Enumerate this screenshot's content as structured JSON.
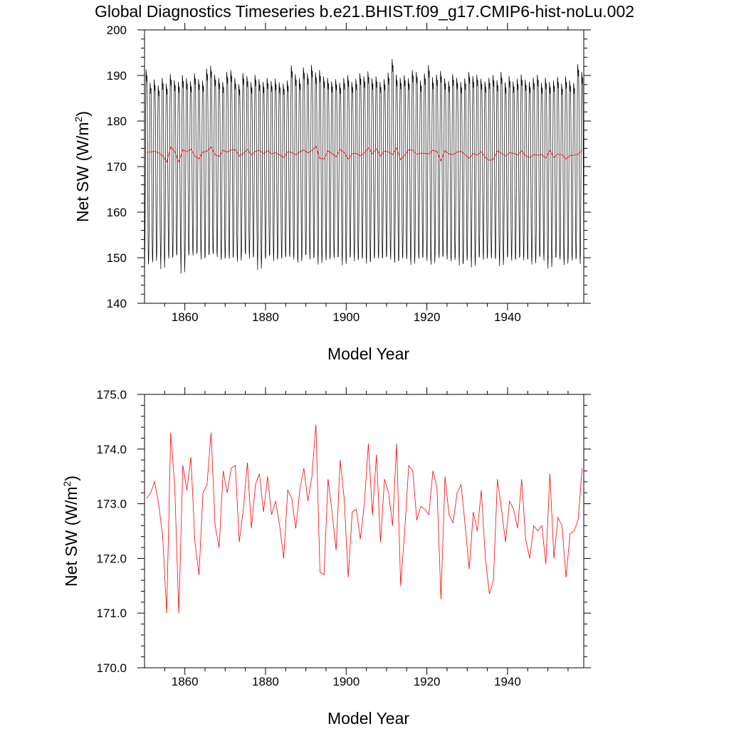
{
  "title": "Global Diagnostics Timeseries b.e21.BHIST.f09_g17.CMIP6-hist-noLu.002",
  "chart_data": [
    {
      "type": "line",
      "xlabel": "Model Year",
      "ylabel_main": "Net SW (W/m",
      "ylabel_sup": "2",
      "ylabel_close": ")",
      "xlim": [
        1850,
        1958.9
      ],
      "ylim": [
        140,
        200
      ],
      "xticks": [
        1860,
        1880,
        1900,
        1920,
        1940
      ],
      "xtick_labels": [
        "1860",
        "1880",
        "1900",
        "1920",
        "1940"
      ],
      "yticks": [
        140,
        150,
        160,
        170,
        180,
        190,
        200
      ],
      "ytick_labels": [
        "140",
        "150",
        "160",
        "170",
        "180",
        "190",
        "200"
      ],
      "series": [
        {
          "color": "#000000",
          "monthly_years": 109,
          "monthly_pattern": [
            149.5,
            156,
            168,
            181,
            189,
            188.2,
            186.5,
            187.8,
            181,
            167,
            155.5,
            149.8
          ],
          "annual_peaks": [
            191.3,
            188.4,
            189.1,
            187.8,
            189.5,
            188.2,
            190.3,
            189.0,
            188.6,
            190.1,
            189.4,
            188.7,
            190.5,
            189.2,
            188.9,
            191.5,
            192.1,
            190.2,
            189.5,
            188.6,
            190.8,
            191.2,
            189.4,
            188.1,
            190.5,
            189.9,
            188.5,
            190.2,
            189.2,
            188.6,
            189.5,
            188.8,
            189.3,
            188.5,
            188.2,
            188.9,
            192.2,
            190.3,
            189.4,
            191.8,
            190.5,
            192.3,
            190.7,
            191.2,
            189.8,
            189.5,
            188.7,
            189.2,
            188.4,
            189.5,
            190.1,
            188.6,
            189.3,
            190.5,
            189.8,
            190.9,
            189.4,
            189.8,
            188.6,
            189.2,
            190.6,
            193.6,
            190.2,
            189.5,
            190.1,
            189.4,
            191.2,
            190.8,
            188.9,
            190.5,
            192.3,
            189.6,
            190.2,
            191.0,
            189.4,
            188.8,
            190.3,
            189.5,
            188.6,
            189.4,
            190.8,
            189.9,
            190.2,
            189.3,
            188.7,
            189.5,
            190.1,
            189.0,
            190.8,
            188.5,
            189.9,
            188.7,
            189.3,
            190.2,
            189.1,
            188.6,
            189.5,
            190.2,
            188.4,
            189.5,
            188.6,
            188.9,
            189.7,
            188.2,
            189.8,
            188.9,
            188.4,
            192.5,
            190.8
          ],
          "annual_troughs": [
            148.2,
            149.5,
            149.0,
            150.5,
            147.5,
            150.3,
            149.8,
            150.2,
            151.0,
            146.5,
            150.2,
            151.2,
            150.5,
            151.4,
            149.6,
            150.3,
            151.1,
            150.8,
            150.1,
            149.5,
            150.4,
            149.8,
            150.2,
            149.1,
            150.7,
            150.9,
            149.8,
            150.4,
            147.3,
            149.5,
            150.2,
            150.6,
            149.3,
            150.1,
            149.8,
            150.5,
            150.2,
            149.6,
            148.9,
            150.3,
            150.8,
            149.6,
            150.2,
            148.5,
            150.1,
            149.4,
            150.3,
            149.9,
            150.2,
            148.3,
            149.7,
            150.5,
            149.2,
            150.0,
            149.8,
            148.7,
            149.5,
            150.3,
            149.8,
            149.9,
            150.4,
            149.6,
            148.9,
            149.6,
            150.2,
            149.7,
            148.4,
            150.3,
            149.8,
            150.1,
            149.3,
            148.5,
            150.6,
            149.9,
            150.4,
            149.6,
            149.2,
            150.3,
            148.3,
            149.1,
            150.2,
            147.9,
            149.7,
            150.6,
            149.5,
            150.4,
            149.9,
            149.7,
            148.1,
            149.8,
            150.3,
            149.3,
            149.8,
            150.2,
            149.4,
            149.7,
            148.5,
            149.9,
            150.4,
            149.3,
            147.6,
            149.8,
            150.1,
            149.6,
            148.4,
            150.0,
            149.4,
            150.1,
            148.6
          ]
        },
        {
          "color": "#ff0000",
          "start_year": 1850.5,
          "step": 1,
          "values": [
            173.1,
            173.2,
            173.4,
            173.0,
            172.4,
            171.0,
            174.3,
            173.3,
            171.0,
            173.7,
            173.25,
            173.85,
            172.3,
            171.7,
            173.2,
            173.35,
            174.3,
            172.6,
            172.2,
            173.6,
            173.2,
            173.65,
            173.7,
            172.3,
            172.9,
            173.75,
            172.55,
            173.35,
            173.55,
            172.85,
            173.5,
            172.8,
            173.05,
            172.6,
            172.0,
            173.25,
            173.1,
            172.55,
            173.25,
            173.65,
            173.05,
            173.5,
            174.45,
            171.75,
            171.7,
            173.45,
            172.85,
            172.15,
            173.8,
            173.1,
            171.65,
            172.85,
            172.9,
            172.35,
            173.0,
            174.1,
            172.8,
            173.9,
            172.3,
            173.45,
            173.2,
            172.6,
            174.1,
            171.5,
            172.5,
            173.7,
            173.6,
            172.7,
            172.95,
            172.9,
            172.8,
            173.6,
            173.3,
            171.25,
            173.5,
            172.8,
            172.65,
            173.2,
            173.35,
            172.6,
            171.8,
            172.85,
            172.5,
            173.25,
            172.0,
            171.35,
            171.6,
            173.45,
            172.9,
            172.3,
            173.05,
            172.9,
            172.55,
            173.45,
            172.35,
            172.0,
            172.6,
            172.5,
            172.6,
            171.9,
            173.55,
            172.0,
            172.75,
            172.6,
            171.65,
            172.45,
            172.5,
            172.7,
            173.65
          ]
        }
      ]
    },
    {
      "type": "line",
      "xlabel": "Model Year",
      "ylabel_main": "Net SW (W/m",
      "ylabel_sup": "2",
      "ylabel_close": ")",
      "xlim": [
        1850,
        1958.9
      ],
      "ylim": [
        170,
        175
      ],
      "xticks": [
        1860,
        1880,
        1900,
        1920,
        1940
      ],
      "xtick_labels": [
        "1860",
        "1880",
        "1900",
        "1920",
        "1940"
      ],
      "yticks": [
        170,
        171,
        172,
        173,
        174,
        175
      ],
      "ytick_labels": [
        "170.0",
        "171.0",
        "172.0",
        "173.0",
        "174.0",
        "175.0"
      ],
      "series": [
        {
          "color": "#ff0000",
          "start_year": 1850.5,
          "step": 1,
          "values": [
            173.1,
            173.2,
            173.4,
            173.0,
            172.4,
            171.0,
            174.3,
            173.3,
            171.0,
            173.7,
            173.25,
            173.85,
            172.3,
            171.7,
            173.2,
            173.35,
            174.3,
            172.6,
            172.2,
            173.6,
            173.2,
            173.65,
            173.7,
            172.3,
            172.9,
            173.75,
            172.55,
            173.35,
            173.55,
            172.85,
            173.5,
            172.8,
            173.05,
            172.6,
            172.0,
            173.25,
            173.1,
            172.55,
            173.25,
            173.65,
            173.05,
            173.5,
            174.45,
            171.75,
            171.7,
            173.45,
            172.85,
            172.15,
            173.8,
            173.1,
            171.65,
            172.85,
            172.9,
            172.35,
            173.0,
            174.1,
            172.8,
            173.9,
            172.3,
            173.45,
            173.2,
            172.6,
            174.1,
            171.5,
            172.5,
            173.7,
            173.6,
            172.7,
            172.95,
            172.9,
            172.8,
            173.6,
            173.3,
            171.25,
            173.5,
            172.8,
            172.65,
            173.2,
            173.35,
            172.6,
            171.8,
            172.85,
            172.5,
            173.25,
            172.0,
            171.35,
            171.6,
            173.45,
            172.9,
            172.3,
            173.05,
            172.9,
            172.55,
            173.45,
            172.35,
            172.0,
            172.6,
            172.5,
            172.6,
            171.9,
            173.55,
            172.0,
            172.75,
            172.6,
            171.65,
            172.45,
            172.5,
            172.7,
            173.65
          ]
        }
      ]
    }
  ]
}
